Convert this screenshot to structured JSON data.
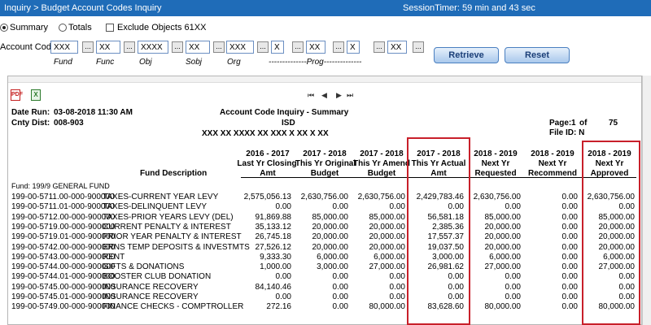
{
  "titlebar": {
    "breadcrumb": "Inquiry > Budget Account Codes Inquiry",
    "session_timer": "SessionTimer: 59 min and 43 sec"
  },
  "options": {
    "summary_label": "Summary",
    "totals_label": "Totals",
    "exclude_label": "Exclude Objects 61XX"
  },
  "account_code": {
    "label": "Account Code:",
    "fields": {
      "fund": "XXX",
      "func": "XX",
      "obj": "XXXX",
      "sobj": "XX",
      "org": "XXX",
      "fy": "X",
      "pic": "XX",
      "prog": "X",
      "extra": "XX"
    },
    "field_labels": {
      "fund": "Fund",
      "func": "Func",
      "obj": "Obj",
      "sobj": "Sobj",
      "org": "Org",
      "prog": "--------------Prog--------------"
    },
    "dots_label": "..."
  },
  "buttons": {
    "retrieve": "Retrieve",
    "reset": "Reset"
  },
  "toolbar": {
    "pdf_icon": "PDF",
    "xls_icon": "X",
    "nav_first": "⏮",
    "nav_prev": "◀",
    "nav_next": "▶",
    "nav_last": "⏭"
  },
  "report": {
    "date_run_label": "Date Run:",
    "date_run": "03-08-2018 11:30 AM",
    "cnty_dist_label": "Cnty Dist:",
    "cnty_dist": "008-903",
    "title": "Account Code Inquiry - Summary",
    "isd": "ISD",
    "mask": "XXX  XX  XXXX  XX  XXX  X  XX  X  XX",
    "page_label": "Page:",
    "page": "1",
    "of_label": "of",
    "page_total": "75",
    "file_id": "File ID:  N",
    "fund_line": "Fund:  199/9     GENERAL FUND",
    "columns": {
      "desc": "Fund Description",
      "c1": [
        "2016 - 2017",
        "Last Yr Closing",
        "Amt"
      ],
      "c2": [
        "2017 - 2018",
        "This Yr Original",
        "Budget"
      ],
      "c3": [
        "2017 - 2018",
        "This Yr Amend",
        "Budget"
      ],
      "c4": [
        "2017 - 2018",
        "This Yr Actual",
        "Amt"
      ],
      "c5": [
        "2018 - 2019",
        "Next Yr",
        "Requested"
      ],
      "c6": [
        "2018 - 2019",
        "Next Yr",
        "Recommend"
      ],
      "c7": [
        "2018 - 2019",
        "Next Yr",
        "Approved"
      ]
    },
    "rows": [
      [
        "199-00-5711.00-000-900000",
        "TAXES-CURRENT YEAR LEVY",
        "2,575,056.13",
        "2,630,756.00",
        "2,630,756.00",
        "2,429,783.46",
        "2,630,756.00",
        "0.00",
        "2,630,756.00"
      ],
      [
        "199-00-5711.01-000-900000",
        "TAXES-DELINQUENT LEVY",
        "0.00",
        "0.00",
        "0.00",
        "0.00",
        "0.00",
        "0.00",
        "0.00"
      ],
      [
        "199-00-5712.00-000-900000",
        "TAXES-PRIOR YEARS LEVY (DEL)",
        "91,869.88",
        "85,000.00",
        "85,000.00",
        "56,581.18",
        "85,000.00",
        "0.00",
        "85,000.00"
      ],
      [
        "199-00-5719.00-000-900000",
        "CURRENT PENALTY & INTEREST",
        "35,133.12",
        "20,000.00",
        "20,000.00",
        "2,385.36",
        "20,000.00",
        "0.00",
        "20,000.00"
      ],
      [
        "199-00-5719.01-000-900000",
        "PRIOR YEAR PENALTY & INTEREST",
        "26,745.18",
        "20,000.00",
        "20,000.00",
        "17,557.37",
        "20,000.00",
        "0.00",
        "20,000.00"
      ],
      [
        "199-00-5742.00-000-900000",
        "ERNS TEMP DEPOSITS & INVESTMTS",
        "27,526.12",
        "20,000.00",
        "20,000.00",
        "19,037.50",
        "20,000.00",
        "0.00",
        "20,000.00"
      ],
      [
        "199-00-5743.00-000-900000",
        "RENT",
        "9,333.30",
        "6,000.00",
        "6,000.00",
        "3,000.00",
        "6,000.00",
        "0.00",
        "6,000.00"
      ],
      [
        "199-00-5744.00-000-900000",
        "GIFTS & DONATIONS",
        "1,000.00",
        "3,000.00",
        "27,000.00",
        "26,981.62",
        "27,000.00",
        "0.00",
        "27,000.00"
      ],
      [
        "199-00-5744.01-000-900000",
        "BOOSTER CLUB DONATION",
        "0.00",
        "0.00",
        "0.00",
        "0.00",
        "0.00",
        "0.00",
        "0.00"
      ],
      [
        "199-00-5745.00-000-900000",
        "INSURANCE RECOVERY",
        "84,140.46",
        "0.00",
        "0.00",
        "0.00",
        "0.00",
        "0.00",
        "0.00"
      ],
      [
        "199-00-5745.01-000-900000",
        "INSURANCE RECOVERY",
        "0.00",
        "0.00",
        "0.00",
        "0.00",
        "0.00",
        "0.00",
        "0.00"
      ],
      [
        "199-00-5749.00-000-900000",
        "FINANCE CHECKS - COMPTROLLER",
        "272.16",
        "0.00",
        "80,000.00",
        "83,628.60",
        "80,000.00",
        "0.00",
        "80,000.00"
      ]
    ]
  }
}
